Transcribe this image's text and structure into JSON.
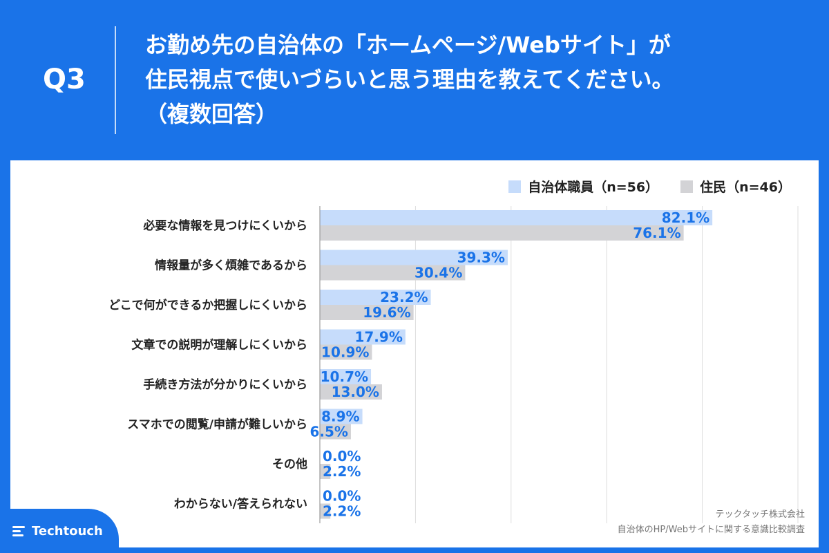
{
  "header": {
    "q_label": "Q3",
    "title_lines": [
      "お勤め先の自治体の「ホームページ/Webサイト」が",
      "住民視点で使いづらいと思う理由を教えてください。",
      "（複数回答）"
    ]
  },
  "footer": {
    "brand": "Techtouch",
    "company": "テックタッチ株式会社",
    "survey": "自治体のHP/Webサイトに関する意識比較調査"
  },
  "colors": {
    "background": "#1a73e8",
    "series_staff": "#c6dcfb",
    "series_residents": "#d3d3d6",
    "value_label": "#1a73e8"
  },
  "chart_data": {
    "type": "bar",
    "orientation": "horizontal",
    "categories": [
      "必要な情報を見つけにくいから",
      "情報量が多く煩雑であるから",
      "どこで何ができるか把握しにくいから",
      "文章での説明が理解しにくいから",
      "手続き方法が分かりにくいから",
      "スマホでの閲覧/申請が難しいから",
      "その他",
      "わからない/答えられない"
    ],
    "series": [
      {
        "name": "自治体職員（n=56）",
        "values": [
          82.1,
          39.3,
          23.2,
          17.9,
          10.7,
          8.9,
          0.0,
          0.0
        ],
        "labels": [
          "82.1%",
          "39.3%",
          "23.2%",
          "17.9%",
          "10.7%",
          "8.9%",
          "0.0%",
          "0.0%"
        ]
      },
      {
        "name": "住民（n=46）",
        "values": [
          76.1,
          30.4,
          19.6,
          10.9,
          13.0,
          6.5,
          2.2,
          2.2
        ],
        "labels": [
          "76.1%",
          "30.4%",
          "19.6%",
          "10.9%",
          "13.0%",
          "6.5%",
          "2.2%",
          "2.2%"
        ]
      }
    ],
    "xlim": [
      0,
      100
    ],
    "grid": true,
    "legend_position": "top-right"
  }
}
